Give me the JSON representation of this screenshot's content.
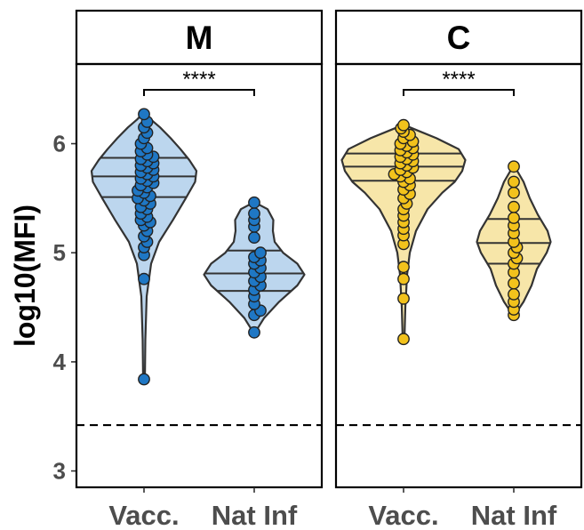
{
  "chart_data": {
    "type": "violin",
    "ylabel": "log10(MFI)",
    "ylim": [
      2.85,
      6.73
    ],
    "yticks": [
      3,
      4,
      5,
      6
    ],
    "threshold_line": 3.42,
    "categories": [
      "Vacc.",
      "Nat Inf"
    ],
    "panels": [
      {
        "title": "M",
        "significance": "****",
        "color_fill": "#bcd6ee",
        "color_point": "#1f77c4",
        "groups": [
          {
            "category": "Vacc.",
            "quantiles": [
              5.51,
              5.7,
              5.87
            ],
            "violin_range": [
              3.84,
              6.28
            ],
            "violin_profile": [
              [
                3.84,
                0.2
              ],
              [
                4.2,
                0.3
              ],
              [
                4.6,
                0.6
              ],
              [
                4.9,
                1.6
              ],
              [
                5.1,
                3.4
              ],
              [
                5.3,
                6.5
              ],
              [
                5.5,
                9.4
              ],
              [
                5.65,
                11.5
              ],
              [
                5.75,
                11.8
              ],
              [
                5.85,
                10.2
              ],
              [
                5.95,
                8.2
              ],
              [
                6.05,
                6.0
              ],
              [
                6.15,
                3.6
              ],
              [
                6.22,
                1.6
              ],
              [
                6.28,
                0.2
              ]
            ],
            "values": [
              3.84,
              4.76,
              4.98,
              5.05,
              5.1,
              5.15,
              5.2,
              5.25,
              5.28,
              5.3,
              5.33,
              5.36,
              5.4,
              5.42,
              5.45,
              5.48,
              5.5,
              5.52,
              5.55,
              5.57,
              5.6,
              5.62,
              5.64,
              5.66,
              5.68,
              5.7,
              5.72,
              5.74,
              5.76,
              5.78,
              5.8,
              5.82,
              5.84,
              5.86,
              5.88,
              5.9,
              5.93,
              5.96,
              6.0,
              6.05,
              6.1,
              6.15,
              6.2,
              6.27
            ]
          },
          {
            "category": "Nat Inf",
            "quantiles": [
              4.65,
              4.81,
              5.02
            ],
            "violin_range": [
              4.27,
              5.46
            ],
            "violin_profile": [
              [
                4.27,
                0.2
              ],
              [
                4.4,
                2.2
              ],
              [
                4.55,
                5.6
              ],
              [
                4.7,
                9.7
              ],
              [
                4.8,
                11.3
              ],
              [
                4.9,
                9.7
              ],
              [
                5.0,
                6.5
              ],
              [
                5.1,
                4.6
              ],
              [
                5.2,
                4.2
              ],
              [
                5.3,
                4.3
              ],
              [
                5.4,
                3.0
              ],
              [
                5.46,
                0.2
              ]
            ],
            "values": [
              4.27,
              4.43,
              4.47,
              4.53,
              4.6,
              4.66,
              4.7,
              4.74,
              4.78,
              4.82,
              4.86,
              4.9,
              4.93,
              4.96,
              5.0,
              5.14,
              5.24,
              5.3,
              5.36,
              5.46
            ]
          }
        ]
      },
      {
        "title": "C",
        "significance": "****",
        "color_fill": "#f7e6a9",
        "color_point": "#f2c21c",
        "groups": [
          {
            "category": "Vacc.",
            "quantiles": [
              5.66,
              5.79,
              5.91
            ],
            "violin_range": [
              4.21,
              6.17
            ],
            "violin_profile": [
              [
                4.21,
                0.2
              ],
              [
                4.5,
                0.4
              ],
              [
                4.8,
                0.8
              ],
              [
                5.0,
                1.4
              ],
              [
                5.2,
                2.8
              ],
              [
                5.4,
                5.4
              ],
              [
                5.55,
                8.7
              ],
              [
                5.65,
                11.5
              ],
              [
                5.75,
                13.2
              ],
              [
                5.85,
                13.9
              ],
              [
                5.95,
                12.4
              ],
              [
                6.05,
                7.4
              ],
              [
                6.12,
                3.2
              ],
              [
                6.17,
                0.2
              ]
            ],
            "values": [
              4.21,
              4.58,
              4.76,
              4.87,
              5.08,
              5.16,
              5.22,
              5.28,
              5.34,
              5.4,
              5.45,
              5.5,
              5.54,
              5.58,
              5.62,
              5.65,
              5.68,
              5.7,
              5.72,
              5.74,
              5.76,
              5.78,
              5.8,
              5.82,
              5.84,
              5.86,
              5.88,
              5.9,
              5.92,
              5.94,
              5.96,
              5.98,
              6.0,
              6.02,
              6.05,
              6.08,
              6.11,
              6.14,
              6.17
            ]
          },
          {
            "category": "Nat Inf",
            "quantiles": [
              4.9,
              5.09,
              5.31
            ],
            "violin_range": [
              4.43,
              5.79
            ],
            "violin_profile": [
              [
                4.43,
                0.2
              ],
              [
                4.55,
                2.2
              ],
              [
                4.7,
                4.0
              ],
              [
                4.85,
                5.2
              ],
              [
                5.0,
                7.4
              ],
              [
                5.1,
                8.3
              ],
              [
                5.2,
                7.6
              ],
              [
                5.35,
                5.4
              ],
              [
                5.5,
                3.6
              ],
              [
                5.65,
                2.2
              ],
              [
                5.79,
                0.2
              ]
            ],
            "values": [
              4.43,
              4.48,
              4.55,
              4.62,
              4.72,
              4.82,
              4.9,
              4.95,
              5.0,
              5.05,
              5.1,
              5.18,
              5.25,
              5.32,
              5.42,
              5.55,
              5.65,
              5.79
            ]
          }
        ]
      }
    ]
  }
}
